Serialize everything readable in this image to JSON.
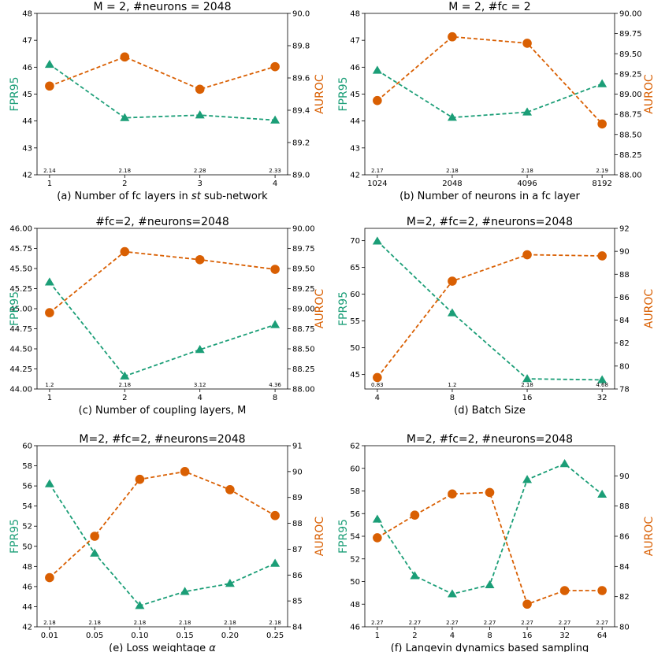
{
  "figure": {
    "left_color": "#1b9e77",
    "right_color": "#d95f02"
  },
  "chart_data": [
    {
      "type": "line",
      "title": "M = 2, #neurons = 2048",
      "caption": "(a) Number of fc layers in",
      "caption_italic": "st",
      "caption_after": "sub-network",
      "x": [
        "1",
        "2",
        "3",
        "4"
      ],
      "series": [
        {
          "name": "FPR95",
          "axis": "left",
          "marker": "triangle",
          "values": [
            46.1,
            44.12,
            44.22,
            44.03
          ]
        },
        {
          "name": "AUROC",
          "axis": "right",
          "marker": "circle",
          "values": [
            89.55,
            89.73,
            89.53,
            89.67
          ]
        }
      ],
      "param_labels": [
        "2.14",
        "2.18",
        "2.28",
        "2.33"
      ],
      "ylabel_left": "FPR95",
      "ylabel_right": "AUROC",
      "ylim_left": [
        42,
        48
      ],
      "yticks_left": [
        "42",
        "43",
        "44",
        "45",
        "46",
        "47",
        "48"
      ],
      "ylim_right": [
        89.0,
        90.0
      ],
      "yticks_right": [
        "89.0",
        "89.2",
        "89.4",
        "89.6",
        "89.8",
        "90.0"
      ]
    },
    {
      "type": "line",
      "title": "M = 2, #fc = 2",
      "caption": "(b) Number of neurons in a fc layer",
      "x": [
        "1024",
        "2048",
        "4096",
        "8192"
      ],
      "series": [
        {
          "name": "FPR95",
          "axis": "left",
          "marker": "triangle",
          "values": [
            45.88,
            44.13,
            44.33,
            45.38
          ]
        },
        {
          "name": "AUROC",
          "axis": "right",
          "marker": "circle",
          "values": [
            88.92,
            89.71,
            89.63,
            88.63
          ]
        }
      ],
      "param_labels": [
        "2.17",
        "2.18",
        "2.18",
        "2.19"
      ],
      "ylabel_left": "FPR95",
      "ylabel_right": "AUROC",
      "ylim_left": [
        42,
        48
      ],
      "yticks_left": [
        "42",
        "43",
        "44",
        "45",
        "46",
        "47",
        "48"
      ],
      "ylim_right": [
        88.0,
        90.0
      ],
      "yticks_right": [
        "88.00",
        "88.25",
        "88.50",
        "88.75",
        "89.00",
        "89.25",
        "89.50",
        "89.75",
        "90.00"
      ]
    },
    {
      "type": "line",
      "title": "#fc=2, #neurons=2048",
      "caption": "(c) Number of coupling layers, M",
      "x": [
        "1",
        "2",
        "4",
        "8"
      ],
      "series": [
        {
          "name": "FPR95",
          "axis": "left",
          "marker": "triangle",
          "values": [
            45.33,
            44.16,
            44.49,
            44.8
          ]
        },
        {
          "name": "AUROC",
          "axis": "right",
          "marker": "circle",
          "values": [
            88.95,
            89.71,
            89.61,
            89.49
          ]
        }
      ],
      "param_labels": [
        "1.2",
        "2.18",
        "3.12",
        "4.36"
      ],
      "ylabel_left": "FPR95",
      "ylabel_right": "AUROC",
      "ylim_left": [
        44.0,
        46.0
      ],
      "yticks_left": [
        "44.00",
        "44.25",
        "44.50",
        "44.75",
        "45.00",
        "45.25",
        "45.50",
        "45.75",
        "46.00"
      ],
      "ylim_right": [
        88.0,
        90.0
      ],
      "yticks_right": [
        "88.00",
        "88.25",
        "88.50",
        "88.75",
        "89.00",
        "89.25",
        "89.50",
        "89.75",
        "90.00"
      ]
    },
    {
      "type": "line",
      "title": "M=2, #fc=2, #neurons=2048",
      "caption": "(d) Batch Size",
      "x": [
        "4",
        "8",
        "16",
        "32"
      ],
      "series": [
        {
          "name": "FPR95",
          "axis": "left",
          "marker": "triangle",
          "values": [
            69.9,
            56.5,
            44.2,
            44.0
          ]
        },
        {
          "name": "AUROC",
          "axis": "right",
          "marker": "circle",
          "values": [
            79.0,
            87.4,
            89.7,
            89.6
          ]
        }
      ],
      "param_labels": [
        "0.83",
        "1.2",
        "2.18",
        "4.68"
      ],
      "ylabel_left": "FPR95",
      "ylabel_right": "AUROC",
      "ylim_left": [
        42.3,
        72.3
      ],
      "yticks_left": [
        "45",
        "50",
        "55",
        "60",
        "65",
        "70"
      ],
      "ylim_right": [
        78.0,
        92.0
      ],
      "yticks_right": [
        "78",
        "80",
        "82",
        "84",
        "86",
        "88",
        "90",
        "92"
      ]
    },
    {
      "type": "line",
      "title": "M=2, #fc=2, #neurons=2048",
      "caption": "(e)  Loss weightage",
      "caption_italic": "α",
      "x": [
        "0.01",
        "0.05",
        "0.10",
        "0.15",
        "0.20",
        "0.25"
      ],
      "series": [
        {
          "name": "FPR95",
          "axis": "left",
          "marker": "triangle",
          "values": [
            56.2,
            49.3,
            44.1,
            45.5,
            46.3,
            48.3
          ]
        },
        {
          "name": "AUROC",
          "axis": "right",
          "marker": "circle",
          "values": [
            85.9,
            87.5,
            89.7,
            90.0,
            89.3,
            88.3
          ]
        }
      ],
      "param_labels": [
        "2.18",
        "2.18",
        "2.18",
        "2.18",
        "2.18",
        "2.18"
      ],
      "ylabel_left": "FPR95",
      "ylabel_right": "AUROC",
      "ylim_left": [
        42,
        60
      ],
      "yticks_left": [
        "42",
        "44",
        "46",
        "48",
        "50",
        "52",
        "54",
        "56",
        "58",
        "60"
      ],
      "ylim_right": [
        84,
        91
      ],
      "yticks_right": [
        "84",
        "85",
        "86",
        "87",
        "88",
        "89",
        "90",
        "91"
      ]
    },
    {
      "type": "line",
      "title": "M=2, #fc=2, #neurons=2048",
      "caption": "(f) Langevin dynamics based sampling",
      "x": [
        "1",
        "2",
        "4",
        "8",
        "16",
        "32",
        "64"
      ],
      "series": [
        {
          "name": "FPR95",
          "axis": "left",
          "marker": "triangle",
          "values": [
            55.5,
            50.5,
            48.9,
            49.7,
            59.0,
            60.4,
            57.7
          ]
        },
        {
          "name": "AUROC",
          "axis": "right",
          "marker": "circle",
          "values": [
            85.9,
            87.4,
            88.8,
            88.9,
            81.5,
            82.4,
            82.4
          ]
        }
      ],
      "param_labels": [
        "2.27",
        "2.27",
        "2.27",
        "2.27",
        "2.27",
        "2.27",
        "2.27"
      ],
      "ylabel_left": "FPR95",
      "ylabel_right": "AUROC",
      "ylim_left": [
        46,
        62
      ],
      "yticks_left": [
        "46",
        "48",
        "50",
        "52",
        "54",
        "56",
        "58",
        "60",
        "62"
      ],
      "ylim_right": [
        80,
        92
      ],
      "yticks_right": [
        "80",
        "82",
        "84",
        "86",
        "88",
        "90"
      ]
    }
  ]
}
